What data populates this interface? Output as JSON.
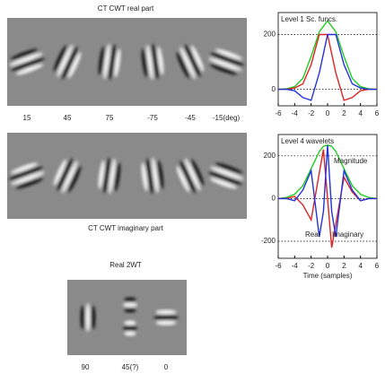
{
  "figure": {
    "top_title": "CT CWT real part",
    "top_labels": [
      "15",
      "45",
      "75",
      "-75",
      "-45",
      "-15(deg)"
    ],
    "bottom_caption": "CT CWT imaginary part",
    "dwt_title": "Real 2WT",
    "dwt_labels": [
      "90",
      "45(?)",
      "0"
    ]
  },
  "chart_data": [
    {
      "type": "line",
      "legend_text": "Level 1 Sc. funcs.",
      "x": [
        -6,
        -5,
        -4,
        -3,
        -2,
        -1,
        0,
        1,
        2,
        3,
        4,
        5,
        6
      ],
      "series": [
        {
          "color": "#22cc22",
          "values": [
            0,
            2,
            10,
            40,
            120,
            210,
            250,
            210,
            120,
            40,
            10,
            2,
            0
          ]
        },
        {
          "color": "#dd2222",
          "values": [
            0,
            0,
            5,
            20,
            90,
            200,
            200,
            60,
            -40,
            -30,
            -5,
            0,
            0
          ]
        },
        {
          "color": "#2233dd",
          "values": [
            0,
            0,
            -5,
            -30,
            -40,
            60,
            200,
            200,
            90,
            20,
            5,
            0,
            0
          ]
        }
      ],
      "xlim": [
        -6,
        6
      ],
      "ylim": [
        -60,
        280
      ],
      "xticks": [
        -6,
        -4,
        -2,
        0,
        2,
        4,
        6
      ],
      "yticks": [
        0,
        200
      ]
    },
    {
      "type": "line",
      "legend_text": "Level 4 wavelets",
      "annotations": [
        "Magnitude",
        "Real",
        "Imaginary"
      ],
      "xlabel": "Time (samples)",
      "x": [
        -6,
        -5,
        -4,
        -3,
        -2,
        -1,
        -0.5,
        0,
        0.5,
        1,
        2,
        3,
        4,
        5,
        6
      ],
      "series": [
        {
          "color": "#22cc22",
          "values": [
            0,
            5,
            20,
            60,
            140,
            220,
            245,
            250,
            245,
            220,
            140,
            60,
            20,
            5,
            0
          ]
        },
        {
          "color": "#dd2222",
          "values": [
            0,
            0,
            10,
            -30,
            -100,
            120,
            230,
            0,
            -230,
            -120,
            100,
            30,
            -10,
            0,
            0
          ]
        },
        {
          "color": "#2233dd",
          "values": [
            0,
            0,
            -10,
            40,
            130,
            -180,
            -60,
            250,
            -60,
            -180,
            130,
            40,
            -10,
            0,
            0
          ]
        }
      ],
      "xlim": [
        -6,
        6
      ],
      "ylim": [
        -280,
        300
      ],
      "xticks": [
        -6,
        -4,
        -2,
        0,
        2,
        4,
        6
      ],
      "yticks": [
        -200,
        0,
        200
      ]
    }
  ]
}
